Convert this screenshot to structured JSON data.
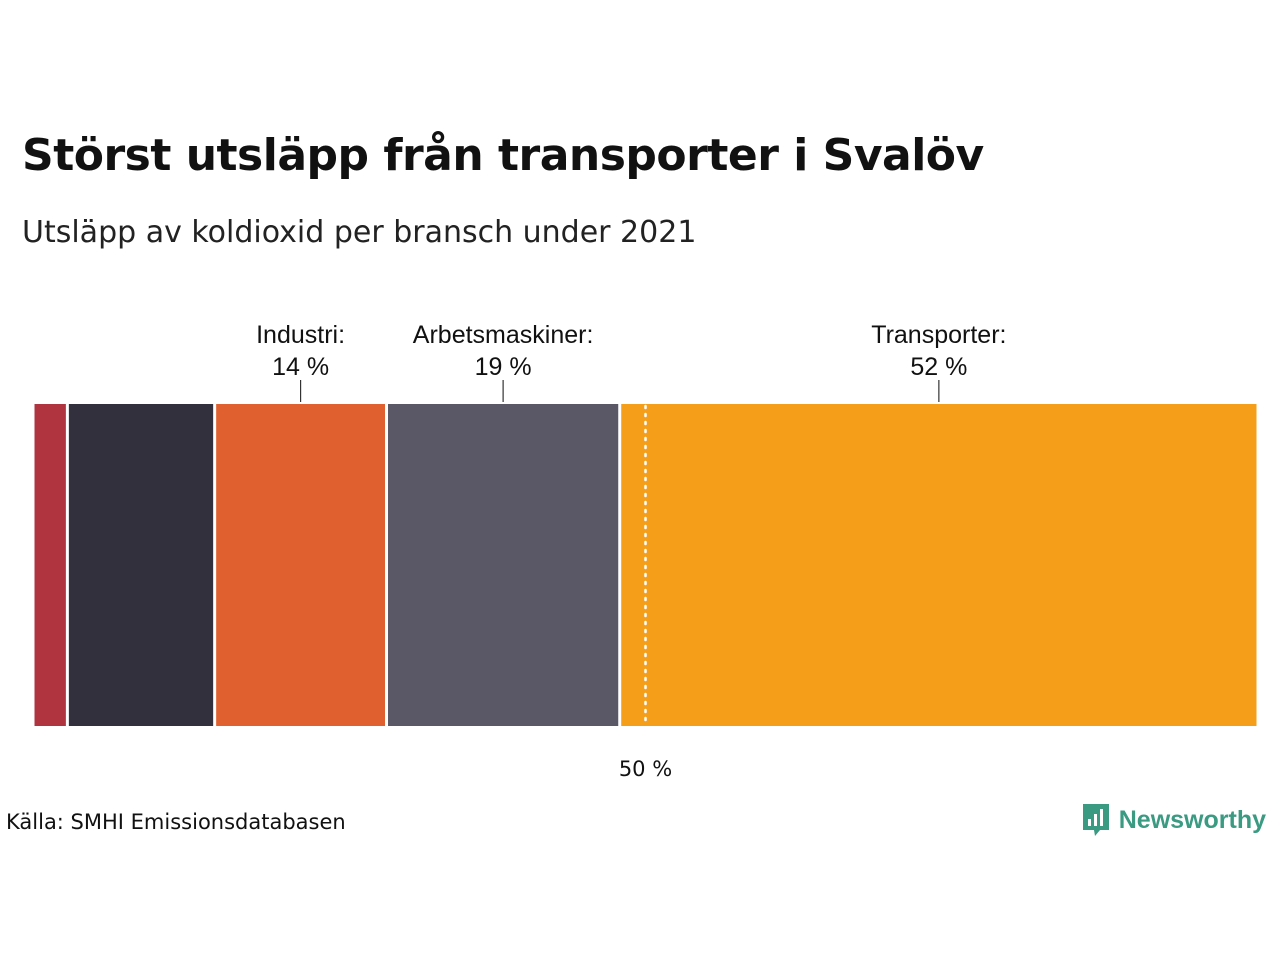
{
  "title": "Störst utsläpp från transporter i Svalöv",
  "subtitle": "Utsläpp av koldioxid per bransch under 2021",
  "source": "Källa: SMHI Emissionsdatabasen",
  "brand": {
    "name": "Newsworthy",
    "icon": "newsworthy-logo-icon",
    "color": "#3a9a82"
  },
  "chart_data": {
    "type": "bar",
    "orientation": "horizontal-stacked-100",
    "title": "Störst utsläpp från transporter i Svalöv",
    "subtitle": "Utsläpp av koldioxid per bransch under 2021",
    "unit": "%",
    "xlim": [
      0,
      100
    ],
    "reference_line": {
      "value": 50,
      "label": "50 %"
    },
    "segments": [
      {
        "value": 2.8,
        "color": "#b03340",
        "show_label": false
      },
      {
        "value": 12,
        "color": "#33303d",
        "show_label": false
      },
      {
        "value": 14,
        "color": "#e06030",
        "show_label": true,
        "label": "Industri:",
        "value_label": "14 %"
      },
      {
        "value": 19,
        "color": "#5a5766",
        "show_label": true,
        "label": "Arbetsmaskiner:",
        "value_label": "19 %"
      },
      {
        "value": 52,
        "color": "#f59e1a",
        "show_label": true,
        "label": "Transporter:",
        "value_label": "52 %"
      }
    ]
  }
}
